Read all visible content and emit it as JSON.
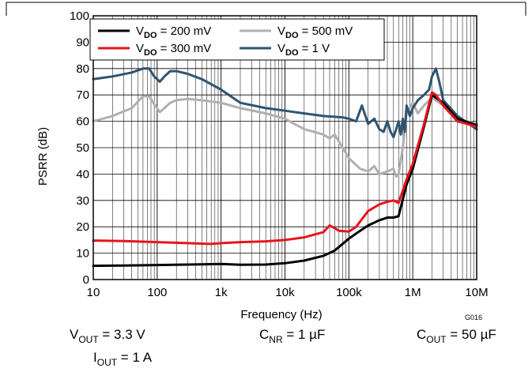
{
  "chart_data": {
    "type": "line",
    "ylabel": "PSRR (dB)",
    "xlabel": "Frequency (Hz)",
    "x_scale": "log",
    "xlim": [
      10,
      10000000
    ],
    "ylim": [
      0,
      100
    ],
    "grid": true,
    "legend_position": "top-left",
    "x_ticks": [
      "10",
      "100",
      "1k",
      "10k",
      "100k",
      "1M",
      "10M"
    ],
    "y_ticks": [
      "0",
      "10",
      "20",
      "30",
      "40",
      "50",
      "60",
      "70",
      "80",
      "90",
      "100"
    ],
    "series": [
      {
        "name": "V_DO = 200 mV",
        "label_main": "V",
        "label_sub": "DO",
        "label_rest": " = 200 mV",
        "color": "#000000",
        "x": [
          10,
          30,
          100,
          300,
          1000,
          2000,
          5000,
          10000,
          20000,
          40000,
          60000,
          100000,
          150000,
          200000,
          300000,
          400000,
          500000,
          600000,
          800000,
          1000000,
          1500000,
          2000000,
          3000000,
          5000000,
          10000000
        ],
        "y": [
          5.2,
          5.3,
          5.5,
          5.7,
          5.9,
          5.6,
          5.7,
          6.2,
          7.2,
          9.0,
          11.0,
          15.5,
          18.5,
          20.5,
          22.5,
          23.5,
          23.5,
          24.0,
          36.0,
          42.0,
          58.0,
          70.0,
          67.0,
          61.0,
          58.5
        ]
      },
      {
        "name": "V_DO = 300 mV",
        "label_main": "V",
        "label_sub": "DO",
        "label_rest": " = 300 mV",
        "color": "#e8141c",
        "x": [
          10,
          30,
          100,
          300,
          700,
          1000,
          2000,
          5000,
          10000,
          20000,
          40000,
          50000,
          60000,
          70000,
          100000,
          130000,
          150000,
          200000,
          300000,
          400000,
          500000,
          600000,
          800000,
          1000000,
          1500000,
          2000000,
          2300000,
          3000000,
          5000000,
          10000000
        ],
        "y": [
          14.8,
          14.6,
          14.2,
          13.8,
          13.5,
          13.8,
          14.2,
          14.5,
          15.0,
          16.0,
          18.0,
          20.5,
          19.5,
          18.5,
          18.2,
          20.0,
          22.0,
          26.0,
          28.5,
          29.5,
          30.0,
          29.0,
          38.0,
          44.0,
          59.0,
          71.0,
          70.0,
          66.0,
          60.0,
          58.0
        ]
      },
      {
        "name": "V_DO = 500 mV",
        "label_main": "V",
        "label_sub": "DO",
        "label_rest": " = 500 mV",
        "color": "#b0b0b0",
        "x": [
          10,
          20,
          40,
          60,
          75,
          90,
          110,
          130,
          160,
          200,
          300,
          500,
          1000,
          2000,
          5000,
          10000,
          20000,
          40000,
          50000,
          60000,
          80000,
          100000,
          150000,
          200000,
          250000,
          300000,
          400000,
          500000,
          550000,
          600000,
          700000,
          800000,
          1000000,
          1200000,
          1500000,
          2000000,
          3000000,
          5000000,
          10000000
        ],
        "y": [
          60.0,
          62.0,
          65.0,
          69.5,
          69.5,
          66.5,
          63.5,
          65.0,
          67.0,
          68.0,
          68.5,
          68.0,
          67.0,
          65.0,
          63.0,
          61.0,
          57.0,
          55.0,
          53.5,
          55.0,
          50.0,
          46.0,
          42.0,
          41.0,
          43.0,
          40.0,
          41.0,
          42.0,
          39.0,
          40.0,
          50.0,
          63.0,
          67.0,
          63.0,
          66.0,
          69.0,
          66.0,
          61.0,
          59.0
        ]
      },
      {
        "name": "V_DO = 1 V",
        "label_main": "V",
        "label_sub": "DO",
        "label_rest": " = 1 V",
        "color": "#2e5470",
        "x": [
          10,
          20,
          40,
          60,
          75,
          90,
          110,
          130,
          160,
          200,
          300,
          500,
          1000,
          2000,
          5000,
          10000,
          20000,
          40000,
          80000,
          100000,
          130000,
          160000,
          200000,
          250000,
          300000,
          350000,
          400000,
          450000,
          500000,
          550000,
          600000,
          650000,
          700000,
          750000,
          800000,
          900000,
          1000000,
          1200000,
          1500000,
          1800000,
          2000000,
          2300000,
          2600000,
          3000000,
          5000000,
          10000000
        ],
        "y": [
          76.0,
          77.0,
          78.5,
          80.0,
          80.0,
          77.0,
          75.0,
          77.0,
          79.0,
          79.0,
          78.0,
          76.0,
          72.0,
          67.0,
          65.0,
          64.0,
          63.0,
          62.0,
          61.5,
          61.0,
          60.0,
          66.0,
          59.0,
          61.0,
          57.0,
          56.0,
          60.0,
          56.0,
          54.0,
          57.0,
          60.0,
          55.0,
          61.0,
          56.0,
          66.0,
          62.0,
          65.0,
          68.0,
          70.0,
          72.0,
          77.0,
          80.0,
          75.0,
          68.0,
          62.0,
          57.0
        ]
      }
    ],
    "annotations": {
      "code": "G016",
      "conditions": [
        {
          "main": "V",
          "sub": "OUT",
          "rest": " = 3.3 V"
        },
        {
          "main": "C",
          "sub": "NR",
          "rest": " = 1 µF"
        },
        {
          "main": "C",
          "sub": "OUT",
          "rest": " = 50 µF"
        },
        {
          "main": "I",
          "sub": "OUT",
          "rest": " = 1 A"
        }
      ]
    }
  }
}
